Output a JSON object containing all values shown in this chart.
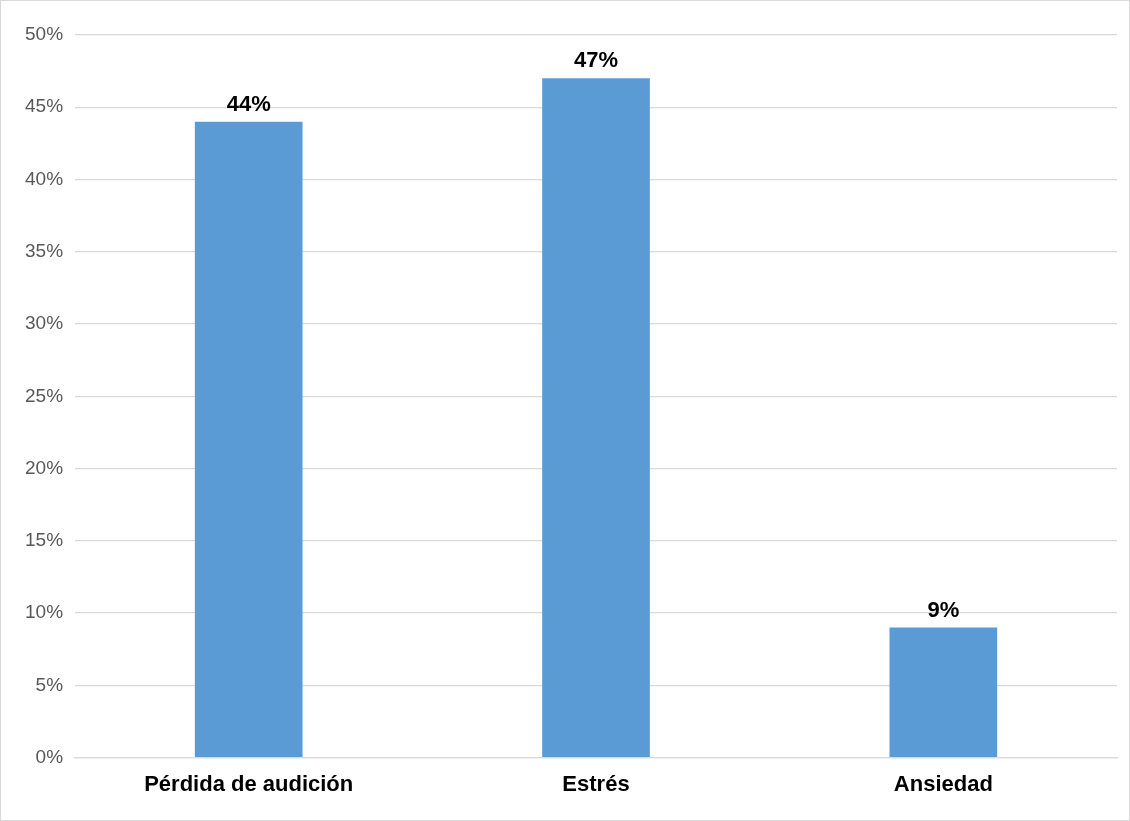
{
  "chart_data": {
    "type": "bar",
    "categories": [
      "Pérdida de audición",
      "Estrés",
      "Ansiedad"
    ],
    "values": [
      44,
      47,
      9
    ],
    "color": "#5b9bd5",
    "value_labels": [
      "44%",
      "47%",
      "9%"
    ],
    "ylim": [
      0,
      50
    ],
    "yticks": [
      {
        "value": 0,
        "label": "0%"
      },
      {
        "value": 5,
        "label": "5%"
      },
      {
        "value": 10,
        "label": "10%"
      },
      {
        "value": 15,
        "label": "15%"
      },
      {
        "value": 20,
        "label": "20%"
      },
      {
        "value": 25,
        "label": "25%"
      },
      {
        "value": 30,
        "label": "30%"
      },
      {
        "value": 35,
        "label": "35%"
      },
      {
        "value": 40,
        "label": "40%"
      },
      {
        "value": 45,
        "label": "45%"
      },
      {
        "value": 50,
        "label": "50%"
      }
    ],
    "grid": "y",
    "legend": false
  }
}
